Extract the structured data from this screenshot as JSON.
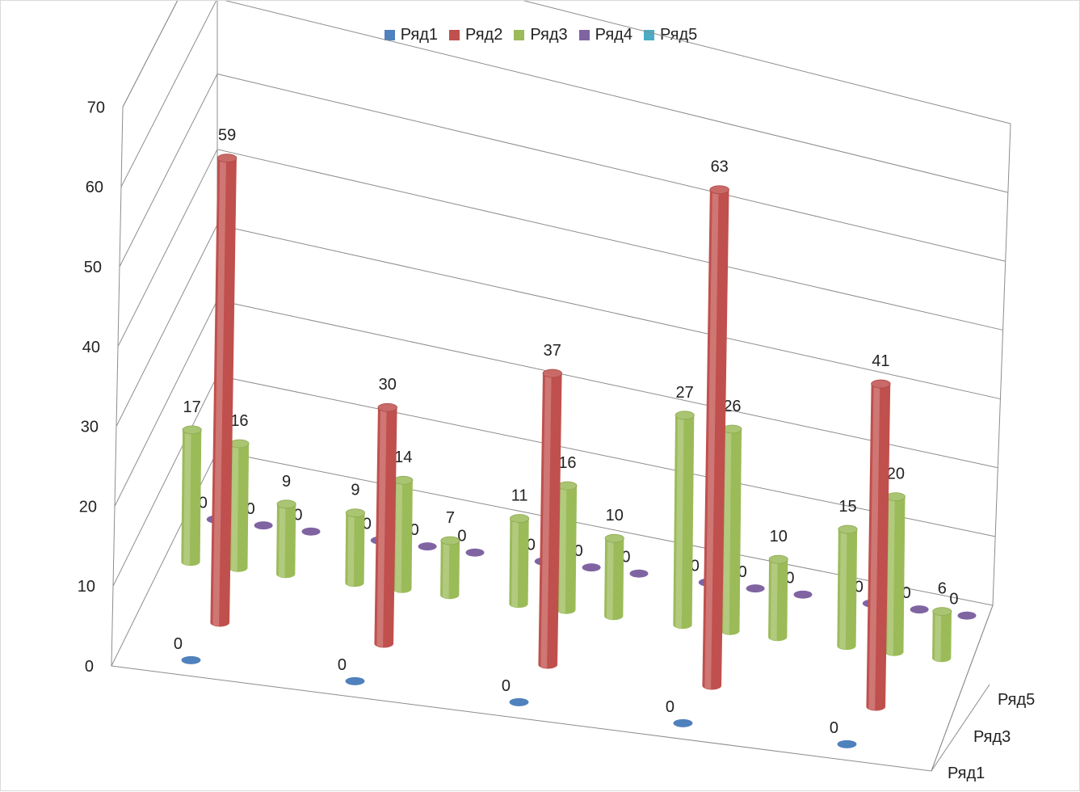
{
  "chart_data": {
    "type": "bar",
    "variant": "3d-cylinder",
    "title": "",
    "xlabel": "",
    "ylabel": "",
    "ylim": [
      0,
      70
    ],
    "y_ticks": [
      0,
      10,
      20,
      30,
      40,
      50,
      60,
      70
    ],
    "grid": true,
    "legend_position": "top",
    "depth_axis_labels": [
      "Ряд1",
      "Ряд3",
      "Ряд5"
    ],
    "series": [
      {
        "name": "Ряд1",
        "color": "#4f81bd",
        "groups": [
          [
            0
          ],
          [
            0
          ],
          [
            0
          ],
          [
            0
          ],
          [
            0
          ]
        ]
      },
      {
        "name": "Ряд2",
        "color": "#c0504d",
        "groups": [
          [
            59
          ],
          [
            30
          ],
          [
            37
          ],
          [
            63
          ],
          [
            41
          ]
        ]
      },
      {
        "name": "Ряд3",
        "color": "#9bbb59",
        "groups": [
          [
            17,
            16,
            9
          ],
          [
            9,
            14,
            7
          ],
          [
            11,
            16,
            10
          ],
          [
            27,
            26,
            10
          ],
          [
            15,
            20,
            6
          ]
        ]
      },
      {
        "name": "Ряд4",
        "color": "#8064a2",
        "groups": [
          [
            0,
            0,
            0
          ],
          [
            0,
            0,
            0
          ],
          [
            0,
            0,
            0
          ],
          [
            0,
            0,
            0
          ],
          [
            0,
            0,
            0
          ]
        ]
      },
      {
        "name": "Ряд5",
        "color": "#4bacc6",
        "groups": [
          [],
          [],
          [],
          [],
          []
        ]
      }
    ]
  }
}
